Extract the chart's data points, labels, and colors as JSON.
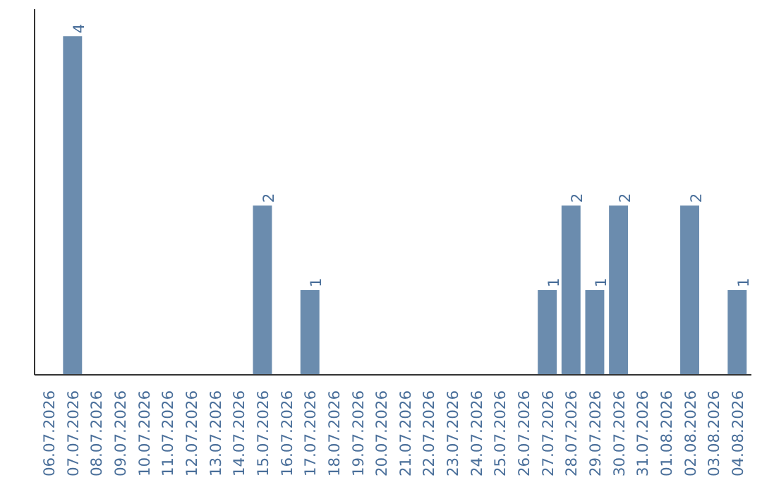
{
  "chart_data": {
    "type": "bar",
    "categories": [
      "06.07.2026",
      "07.07.2026",
      "08.07.2026",
      "09.07.2026",
      "10.07.2026",
      "11.07.2026",
      "12.07.2026",
      "13.07.2026",
      "14.07.2026",
      "15.07.2026",
      "16.07.2026",
      "17.07.2026",
      "18.07.2026",
      "19.07.2026",
      "20.07.2026",
      "21.07.2026",
      "22.07.2026",
      "23.07.2026",
      "24.07.2026",
      "25.07.2026",
      "26.07.2026",
      "27.07.2026",
      "28.07.2026",
      "29.07.2026",
      "30.07.2026",
      "31.07.2026",
      "01.08.2026",
      "02.08.2026",
      "03.08.2026",
      "04.08.2026"
    ],
    "values": [
      0,
      4,
      0,
      0,
      0,
      0,
      0,
      0,
      0,
      2,
      0,
      1,
      0,
      0,
      0,
      0,
      0,
      0,
      0,
      0,
      0,
      1,
      2,
      1,
      2,
      0,
      0,
      2,
      0,
      1
    ],
    "value_labels": [
      null,
      "4",
      null,
      null,
      null,
      null,
      null,
      null,
      null,
      "2",
      null,
      "1",
      null,
      null,
      null,
      null,
      null,
      null,
      null,
      null,
      null,
      "1",
      "2",
      "1",
      "2",
      null,
      null,
      "2",
      null,
      "1"
    ],
    "color": "#6b8cae",
    "tick_labels": "x"
  }
}
